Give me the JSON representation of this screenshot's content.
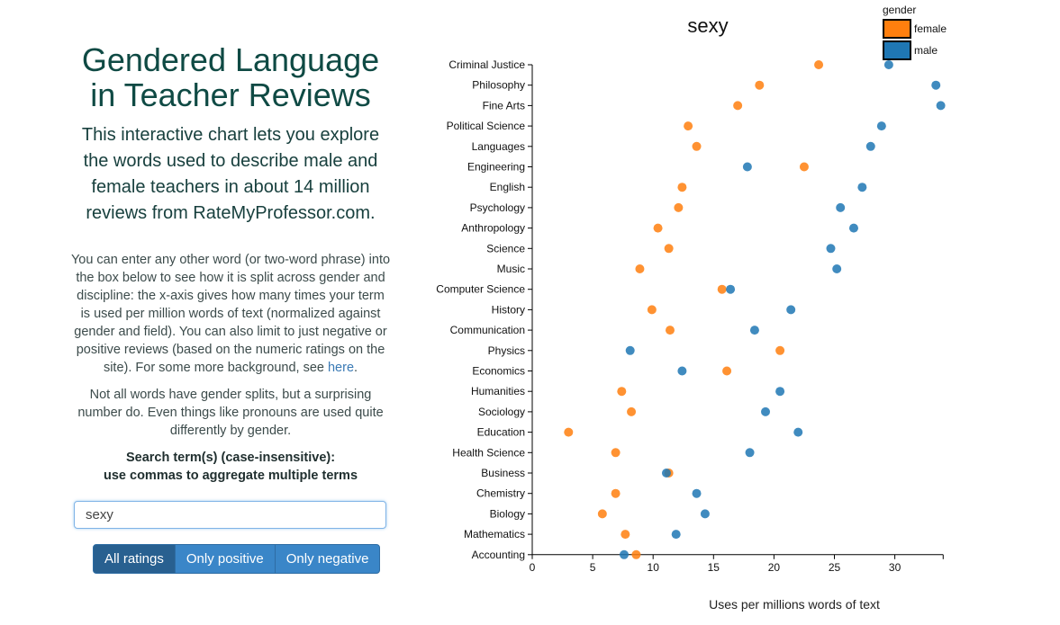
{
  "intro": {
    "title": "Gendered Language in Teacher Reviews",
    "subtitle": "This interactive chart lets you explore the words used to describe male and female teachers in about 14 million reviews from RateMyProfessor.com.",
    "para1_text": "You can enter any other word (or two-word phrase) into the box below to see how it is split across gender and discipline: the x-axis gives how many times your term is used per million words of text (normalized against gender and field). You can also limit to just negative or positive reviews (based on the numeric ratings on the site). For some more background, see ",
    "para1_link": "here",
    "para1_end": ".",
    "para2": "Not all words have gender splits, but a surprising number do. Even things like pronouns are used quite differently by gender.",
    "search_label_line1": "Search term(s) (case-insensitive):",
    "search_label_line2": "use commas to aggregate multiple terms"
  },
  "search": {
    "value": "sexy"
  },
  "rating_buttons": [
    "All ratings",
    "Only positive",
    "Only negative"
  ],
  "active_rating": "All ratings",
  "chart_data": {
    "type": "scatter",
    "title": "sexy",
    "xlabel": "Uses per millions words of text",
    "ylabel": "",
    "xlim": [
      0,
      34
    ],
    "xticks": [
      0,
      5,
      10,
      15,
      20,
      25,
      30
    ],
    "legend": {
      "title": "gender",
      "placement": "top-right",
      "entries": [
        {
          "name": "female",
          "color": "#ff7f0e"
        },
        {
          "name": "male",
          "color": "#1f77b4"
        }
      ]
    },
    "categories": [
      "Criminal Justice",
      "Philosophy",
      "Fine Arts",
      "Political Science",
      "Languages",
      "Engineering",
      "English",
      "Psychology",
      "Anthropology",
      "Science",
      "Music",
      "Computer Science",
      "History",
      "Communication",
      "Physics",
      "Economics",
      "Humanities",
      "Sociology",
      "Education",
      "Health Science",
      "Business",
      "Chemistry",
      "Biology",
      "Mathematics",
      "Accounting"
    ],
    "series": [
      {
        "name": "female",
        "color": "#ff7f0e",
        "values": [
          23.7,
          18.8,
          17.0,
          12.9,
          13.6,
          22.5,
          12.4,
          12.1,
          10.4,
          11.3,
          8.9,
          15.7,
          9.9,
          11.4,
          20.5,
          16.1,
          7.4,
          8.2,
          3.0,
          6.9,
          11.3,
          6.9,
          5.8,
          7.7,
          8.6
        ]
      },
      {
        "name": "male",
        "color": "#1f77b4",
        "values": [
          29.5,
          33.4,
          33.8,
          28.9,
          28.0,
          17.8,
          27.3,
          25.5,
          26.6,
          24.7,
          25.2,
          16.4,
          21.4,
          18.4,
          8.1,
          12.4,
          20.5,
          19.3,
          22.0,
          18.0,
          11.1,
          13.6,
          14.3,
          11.9,
          7.6
        ]
      }
    ]
  }
}
